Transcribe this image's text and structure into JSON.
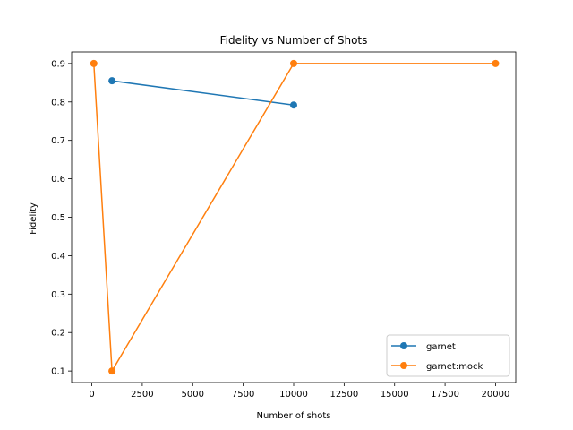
{
  "chart_data": {
    "type": "line",
    "title": "Fidelity vs Number of Shots",
    "xlabel": "Number of shots",
    "ylabel": "Fidelity",
    "xlim": [
      -1000,
      21000
    ],
    "ylim": [
      0.07,
      0.93
    ],
    "xticks": [
      0,
      2500,
      5000,
      7500,
      10000,
      12500,
      15000,
      17500,
      20000
    ],
    "yticks": [
      0.1,
      0.2,
      0.3,
      0.4,
      0.5,
      0.6,
      0.7,
      0.8,
      0.9
    ],
    "xtick_labels": [
      "0",
      "2500",
      "5000",
      "7500",
      "10000",
      "12500",
      "15000",
      "17500",
      "20000"
    ],
    "ytick_labels": [
      "0.1",
      "0.2",
      "0.3",
      "0.4",
      "0.5",
      "0.6",
      "0.7",
      "0.8",
      "0.9"
    ],
    "grid": false,
    "legend_position": "lower-right",
    "series": [
      {
        "name": "garnet",
        "color": "#1f77b4",
        "marker": "circle",
        "points": [
          {
            "x": 1000,
            "y": 0.855
          },
          {
            "x": 10000,
            "y": 0.792
          }
        ]
      },
      {
        "name": "garnet:mock",
        "color": "#ff7f0e",
        "marker": "circle",
        "points": [
          {
            "x": 100,
            "y": 0.9
          },
          {
            "x": 1000,
            "y": 0.1
          },
          {
            "x": 10000,
            "y": 0.9
          },
          {
            "x": 20000,
            "y": 0.9
          }
        ]
      }
    ]
  }
}
